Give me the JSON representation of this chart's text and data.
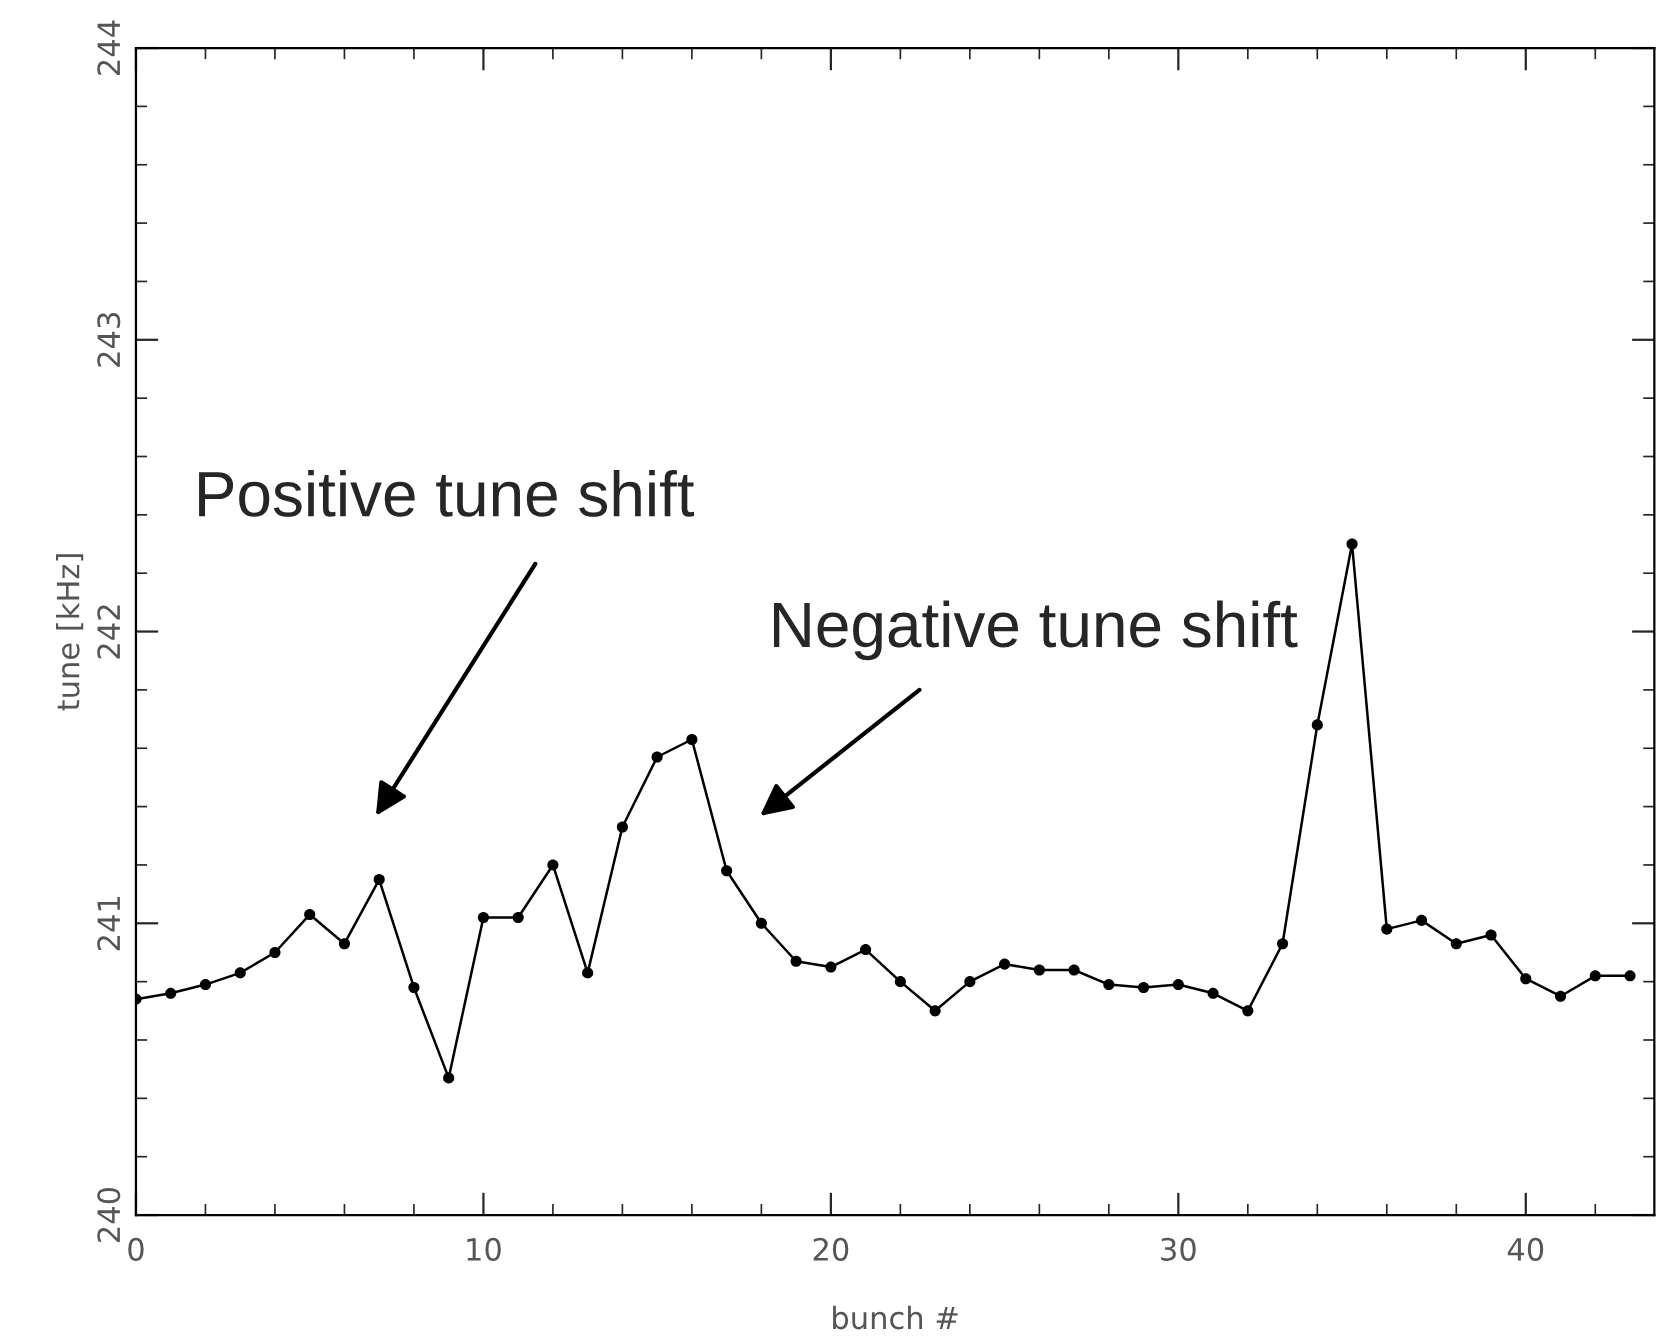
{
  "chart_data": {
    "type": "line",
    "xlabel": "bunch #",
    "ylabel": "tune [kHz]",
    "x": [
      0,
      1,
      2,
      3,
      4,
      5,
      6,
      7,
      8,
      9,
      10,
      11,
      12,
      13,
      14,
      15,
      16,
      17,
      18,
      19,
      20,
      21,
      22,
      23,
      24,
      25,
      26,
      27,
      28,
      29,
      30,
      31,
      32,
      33,
      34,
      35,
      36,
      37,
      38,
      39,
      40,
      41,
      42,
      43
    ],
    "series": [
      {
        "color": "#000000",
        "values": [
          240.74,
          240.76,
          240.79,
          240.83,
          240.9,
          241.03,
          240.93,
          241.15,
          240.78,
          240.47,
          241.02,
          241.02,
          241.2,
          240.83,
          241.33,
          241.57,
          241.63,
          241.18,
          241.0,
          240.87,
          240.85,
          240.91,
          240.8,
          240.7,
          240.8,
          240.86,
          240.84,
          240.84,
          240.79,
          240.78,
          240.79,
          240.76,
          240.7,
          240.93,
          241.68,
          242.3,
          240.98,
          241.01,
          240.93,
          240.96,
          240.81,
          240.75,
          240.82,
          240.82
        ]
      }
    ],
    "xlim": [
      0,
      43.7
    ],
    "xticks": [
      0,
      10,
      20,
      30,
      40
    ],
    "ylim": [
      240,
      244
    ],
    "yticks": [
      240,
      241,
      242,
      243,
      244
    ],
    "annotations": [
      "Positive tune shift",
      "Negative tune shift"
    ],
    "marker": "circle",
    "line_style": "solid",
    "grid": false,
    "legend": false
  }
}
